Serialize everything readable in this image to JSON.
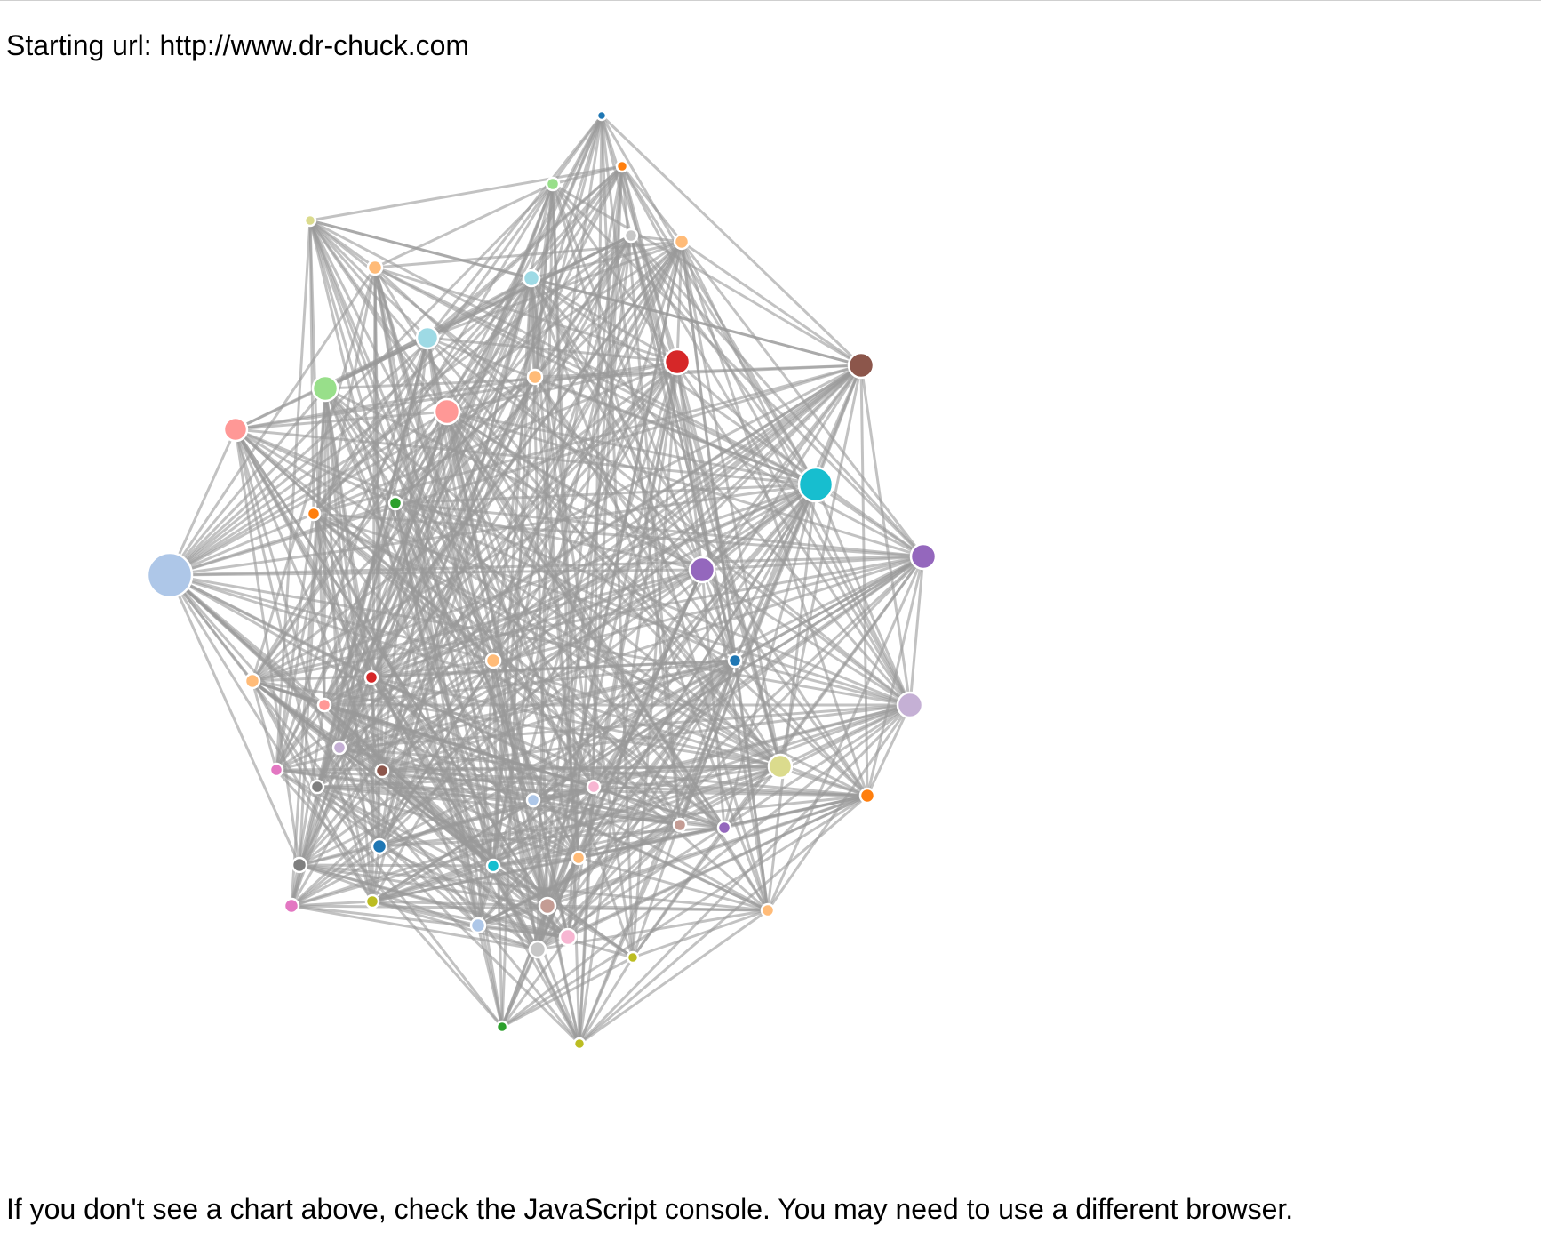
{
  "header": {
    "label": "Starting url:",
    "url": "http://www.dr-chuck.com"
  },
  "footer": {
    "note": "If you don't see a chart above, check the JavaScript console. You may need to use a different browser."
  },
  "colors": {
    "link": "#999999",
    "node_stroke": "#ffffff",
    "palette": [
      "#1f77b4",
      "#aec7e8",
      "#ff7f0e",
      "#ffbb78",
      "#2ca02c",
      "#98df8a",
      "#d62728",
      "#ff9896",
      "#9467bd",
      "#c5b0d5",
      "#8c564b",
      "#c49c94",
      "#e377c2",
      "#f7b6d2",
      "#7f7f7f",
      "#c7c7c7",
      "#bcbd22",
      "#dbdb8d",
      "#17becf",
      "#9edae5"
    ]
  },
  "graph": {
    "type": "force-directed network",
    "node_count": 60,
    "edge_density": 0.42
  }
}
